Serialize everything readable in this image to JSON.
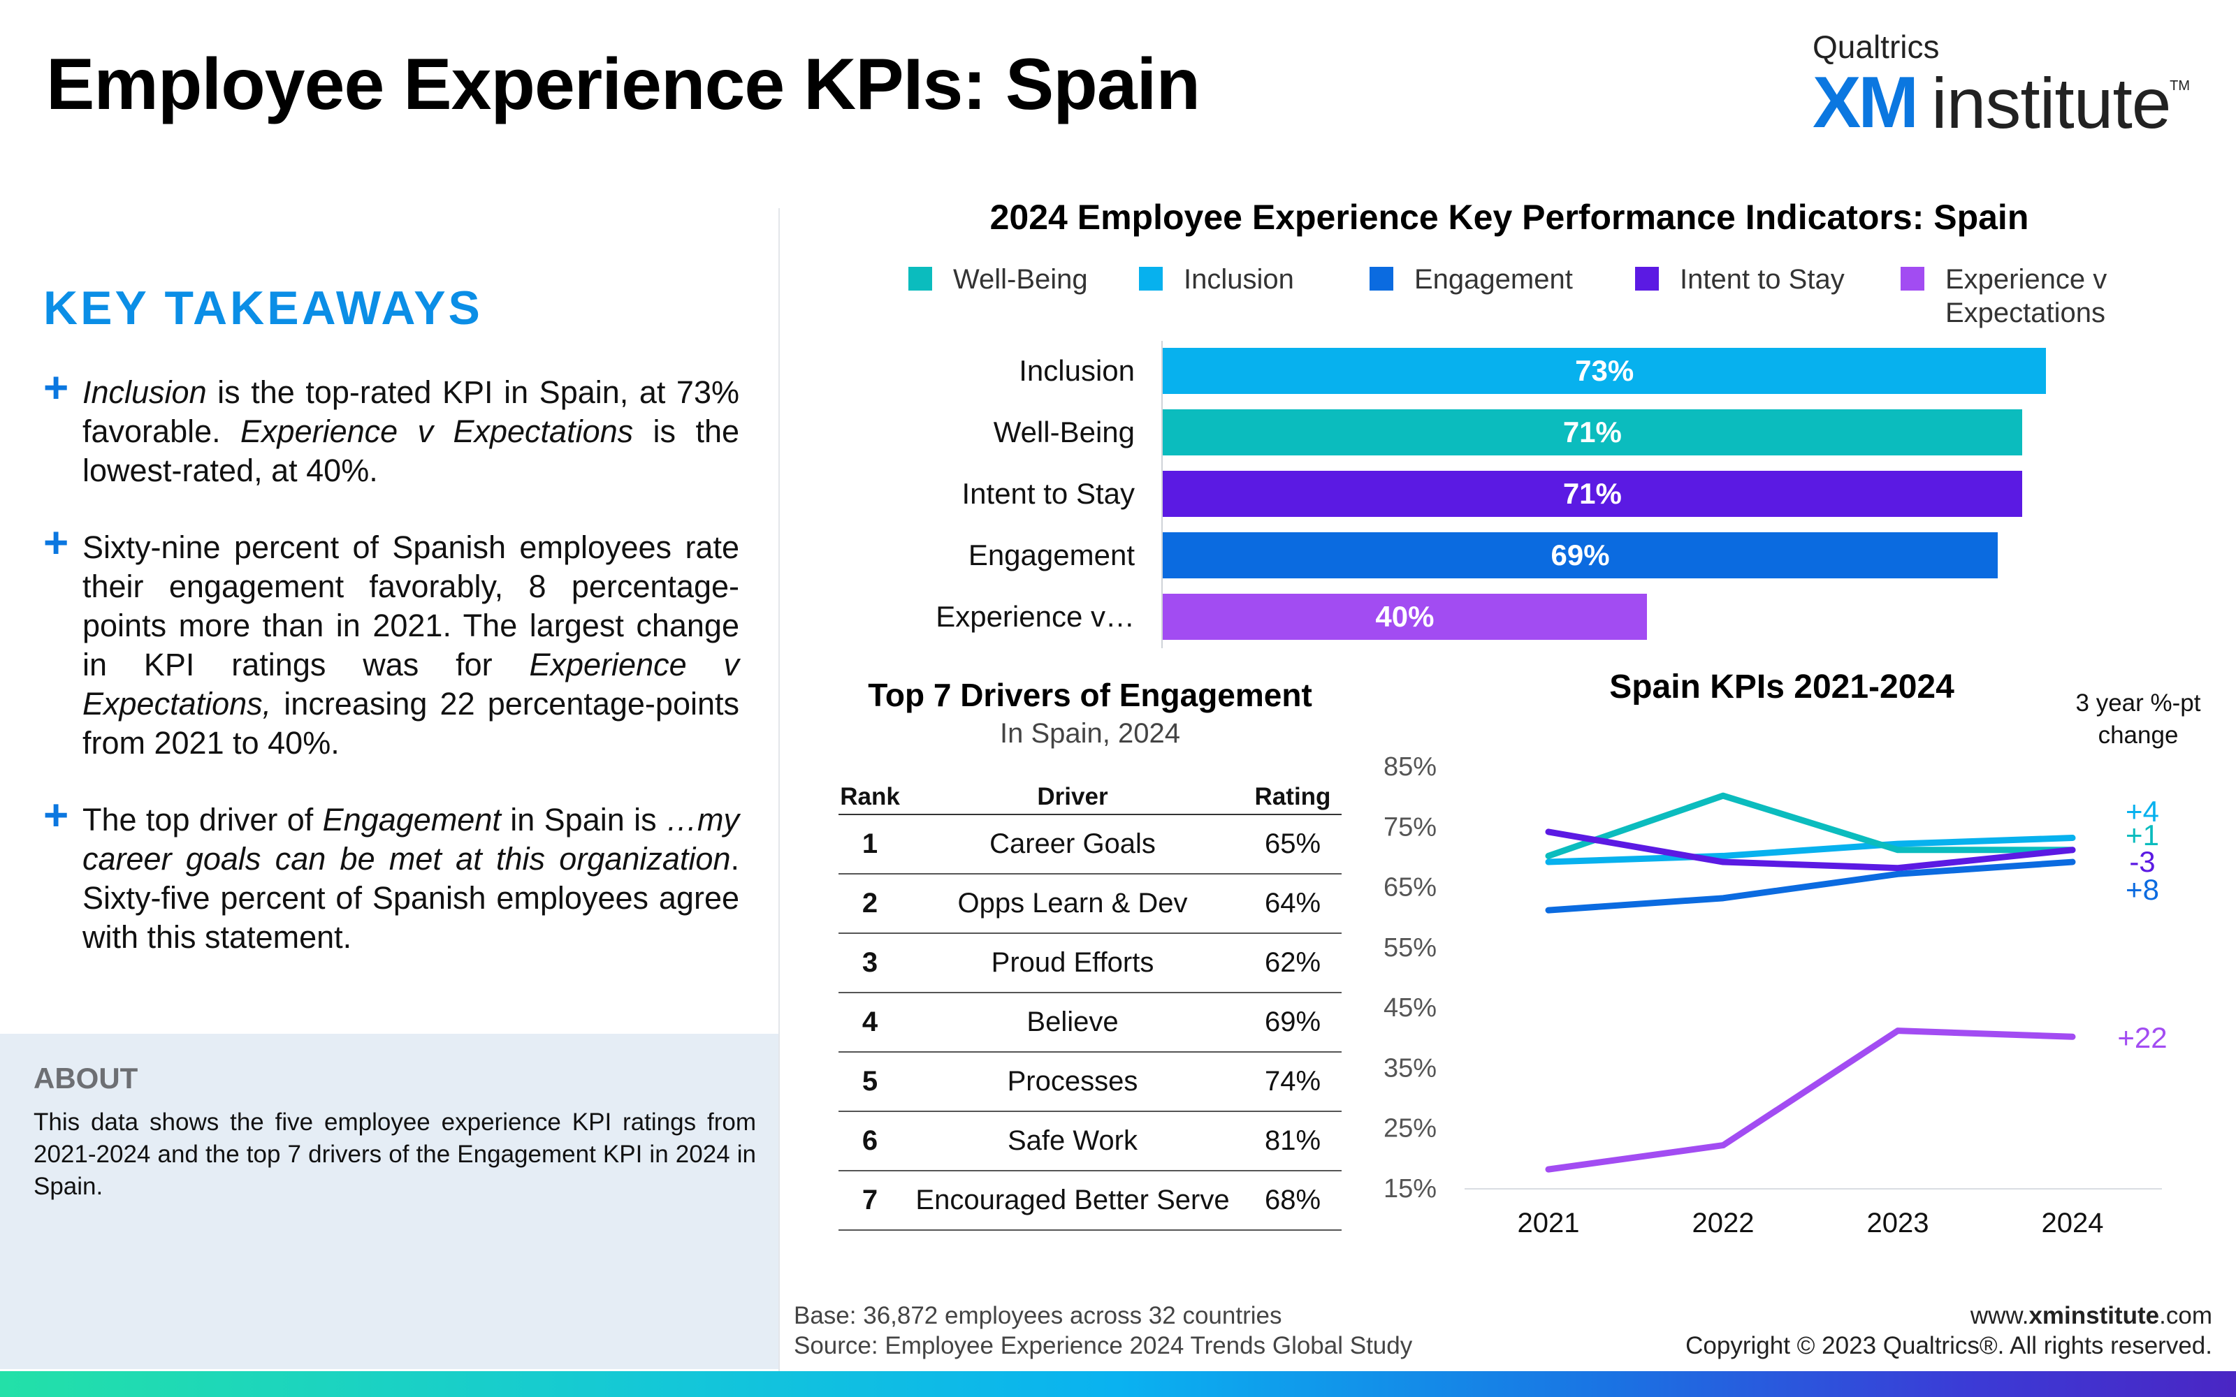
{
  "title": "Employee Experience KPIs: Spain",
  "logo": {
    "small": "Qualtrics",
    "xm": "XM",
    "institute": "institute",
    "tm": "TM"
  },
  "key_takeaways": {
    "heading": "KEY TAKEAWAYS",
    "items": [
      {
        "parts": [
          {
            "t": "Inclusion",
            "i": true
          },
          {
            "t": " is the top-rated KPI in Spain, at 73% favorable. "
          },
          {
            "t": "Experience v Expectations",
            "i": true
          },
          {
            "t": " is the lowest-rated, at 40%."
          }
        ]
      },
      {
        "parts": [
          {
            "t": "Sixty-nine percent of Spanish employees rate their engagement favorably, 8 percentage-points more than in 2021. The largest change in KPI ratings was for "
          },
          {
            "t": "Experience v Expectations,",
            "i": true
          },
          {
            "t": " increasing 22 percentage-points from 2021 to 40%."
          }
        ]
      },
      {
        "parts": [
          {
            "t": "The top driver of "
          },
          {
            "t": "Engagement",
            "i": true
          },
          {
            "t": " in Spain is "
          },
          {
            "t": "…my career goals can be met at this organization",
            "i": true
          },
          {
            "t": ". Sixty-five percent of Spanish employees agree with this statement."
          }
        ]
      }
    ]
  },
  "about": {
    "heading": "ABOUT",
    "text": "This data shows the five employee experience KPI ratings from 2021-2024 and the top 7 drivers of the Engagement KPI in 2024 in Spain."
  },
  "bar_chart_title": "2024 Employee Experience Key Performance Indicators: Spain",
  "legend": [
    {
      "label": "Well-Being",
      "color": "#0bbcbe"
    },
    {
      "label": "Inclusion",
      "color": "#07b1ee"
    },
    {
      "label": "Engagement",
      "color": "#0b6be0"
    },
    {
      "label": "Intent to Stay",
      "color": "#5b1ae3"
    },
    {
      "label": "Experience v Expectations",
      "color": "#a24cf2"
    }
  ],
  "drivers": {
    "title": "Top 7 Drivers of Engagement",
    "subtitle": "In Spain, 2024",
    "headers": {
      "rank": "Rank",
      "driver": "Driver",
      "rating": "Rating"
    },
    "rows": [
      {
        "rank": "1",
        "driver": "Career Goals",
        "rating": "65%"
      },
      {
        "rank": "2",
        "driver": "Opps Learn & Dev",
        "rating": "64%"
      },
      {
        "rank": "3",
        "driver": "Proud Efforts",
        "rating": "62%"
      },
      {
        "rank": "4",
        "driver": "Believe",
        "rating": "69%"
      },
      {
        "rank": "5",
        "driver": "Processes",
        "rating": "74%"
      },
      {
        "rank": "6",
        "driver": "Safe Work",
        "rating": "81%"
      },
      {
        "rank": "7",
        "driver": "Encouraged Better Serve",
        "rating": "68%"
      }
    ]
  },
  "line_chart_title": "Spain KPIs 2021-2024",
  "change_header": "3 year %-pt change",
  "chart_data": [
    {
      "type": "bar",
      "orientation": "horizontal",
      "title": "2024 Employee Experience Key Performance Indicators: Spain",
      "categories": [
        "Inclusion",
        "Well-Being",
        "Intent to Stay",
        "Engagement",
        "Experience v…"
      ],
      "values": [
        73,
        71,
        71,
        69,
        40
      ],
      "value_labels": [
        "73%",
        "71%",
        "71%",
        "69%",
        "40%"
      ],
      "colors": [
        "#07b1ee",
        "#0bbcbe",
        "#5b1ae3",
        "#0b6be0",
        "#a24cf2"
      ],
      "xlim": [
        0,
        100
      ],
      "legend_position": "top"
    },
    {
      "type": "line",
      "title": "Spain KPIs 2021-2024",
      "x": [
        "2021",
        "2022",
        "2023",
        "2024"
      ],
      "ylim": [
        15,
        85
      ],
      "yticks": [
        15,
        25,
        35,
        45,
        55,
        65,
        75,
        85
      ],
      "ytick_labels": [
        "15%",
        "25%",
        "35%",
        "45%",
        "55%",
        "65%",
        "75%",
        "85%"
      ],
      "grid": false,
      "series": [
        {
          "name": "Inclusion",
          "color": "#07b1ee",
          "values": [
            69,
            70,
            72,
            73
          ],
          "change": "+4"
        },
        {
          "name": "Well-Being",
          "color": "#0bbcbe",
          "values": [
            70,
            80,
            71,
            71
          ],
          "change": "+1"
        },
        {
          "name": "Intent to Stay",
          "color": "#5b1ae3",
          "values": [
            74,
            69,
            68,
            71
          ],
          "change": "-3"
        },
        {
          "name": "Engagement",
          "color": "#0b6be0",
          "values": [
            61,
            63,
            67,
            69
          ],
          "change": "+8"
        },
        {
          "name": "Experience v Expectations",
          "color": "#a24cf2",
          "values": [
            18,
            22,
            41,
            40
          ],
          "change": "+22"
        }
      ]
    }
  ],
  "footer": {
    "base": "Base: 36,872 employees across 32 countries",
    "source": "Source: Employee Experience 2024 Trends Global Study",
    "url_prefix": "www.",
    "url_bold": "xminstitute",
    "url_suffix": ".com",
    "copyright": "Copyright © 2023 Qualtrics®. All rights reserved."
  }
}
